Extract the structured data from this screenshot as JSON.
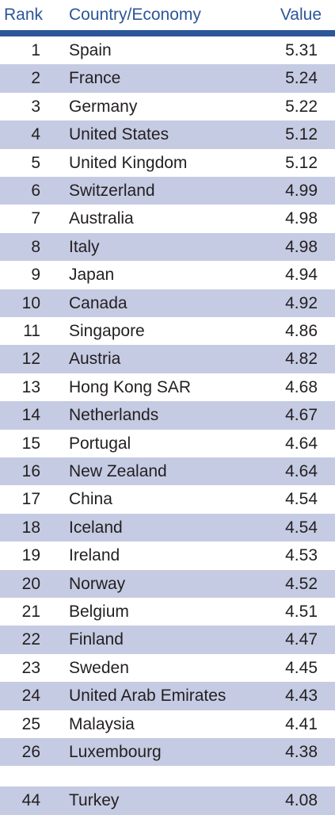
{
  "chart_data": {
    "type": "table",
    "columns": [
      "Rank",
      "Country/Economy",
      "Value"
    ],
    "rows": [
      {
        "rank": "1",
        "country": "Spain",
        "value": "5.31"
      },
      {
        "rank": "2",
        "country": "France",
        "value": "5.24"
      },
      {
        "rank": "3",
        "country": "Germany",
        "value": "5.22"
      },
      {
        "rank": "4",
        "country": "United States",
        "value": "5.12"
      },
      {
        "rank": "5",
        "country": "United Kingdom",
        "value": "5.12"
      },
      {
        "rank": "6",
        "country": "Switzerland",
        "value": "4.99"
      },
      {
        "rank": "7",
        "country": "Australia",
        "value": "4.98"
      },
      {
        "rank": "8",
        "country": "Italy",
        "value": "4.98"
      },
      {
        "rank": "9",
        "country": "Japan",
        "value": "4.94"
      },
      {
        "rank": "10",
        "country": "Canada",
        "value": "4.92"
      },
      {
        "rank": "11",
        "country": "Singapore",
        "value": "4.86"
      },
      {
        "rank": "12",
        "country": "Austria",
        "value": "4.82"
      },
      {
        "rank": "13",
        "country": "Hong Kong SAR",
        "value": "4.68"
      },
      {
        "rank": "14",
        "country": "Netherlands",
        "value": "4.67"
      },
      {
        "rank": "15",
        "country": "Portugal",
        "value": "4.64"
      },
      {
        "rank": "16",
        "country": "New Zealand",
        "value": "4.64"
      },
      {
        "rank": "17",
        "country": "China",
        "value": "4.54"
      },
      {
        "rank": "18",
        "country": "Iceland",
        "value": "4.54"
      },
      {
        "rank": "19",
        "country": "Ireland",
        "value": "4.53"
      },
      {
        "rank": "20",
        "country": "Norway",
        "value": "4.52"
      },
      {
        "rank": "21",
        "country": "Belgium",
        "value": "4.51"
      },
      {
        "rank": "22",
        "country": "Finland",
        "value": "4.47"
      },
      {
        "rank": "23",
        "country": "Sweden",
        "value": "4.45"
      },
      {
        "rank": "24",
        "country": "United Arab Emirates",
        "value": "4.43"
      },
      {
        "rank": "25",
        "country": "Malaysia",
        "value": "4.41"
      },
      {
        "rank": "26",
        "country": "Luxembourg",
        "value": "4.38"
      }
    ],
    "extra_rows": [
      {
        "rank": "44",
        "country": "Turkey",
        "value": "4.08"
      }
    ]
  },
  "colors": {
    "header_text": "#2c5697",
    "header_rule": "#2c5697",
    "row_shade": "#c5cbe3",
    "body_text": "#231f20"
  }
}
